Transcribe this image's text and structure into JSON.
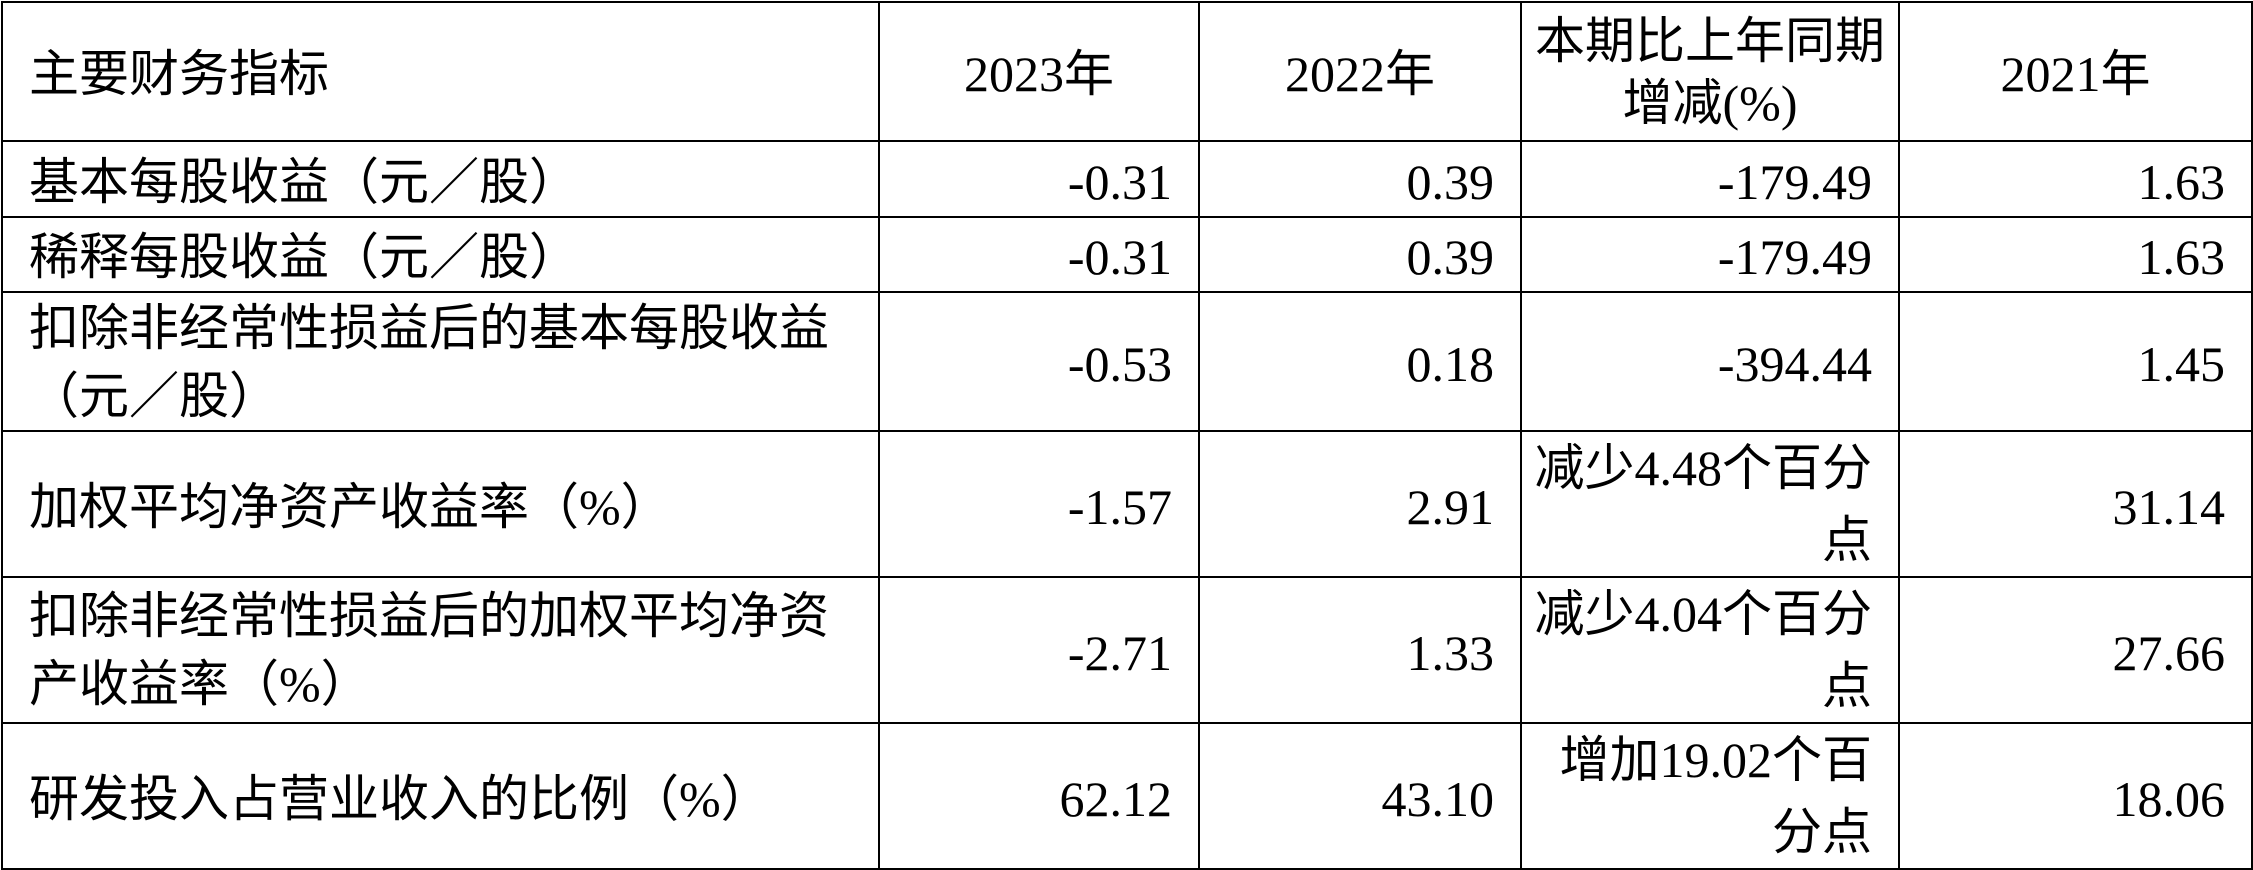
{
  "table": {
    "header": {
      "indicator": "主要财务指标",
      "y2023": "2023年",
      "y2022": "2022年",
      "change": "本期比上年同期增减(%)",
      "y2021": "2021年"
    },
    "rows": [
      {
        "indicator": "基本每股收益（元／股）",
        "y2023": "-0.31",
        "y2022": "0.39",
        "change": "-179.49",
        "y2021": "1.63"
      },
      {
        "indicator": "稀释每股收益（元／股）",
        "y2023": "-0.31",
        "y2022": "0.39",
        "change": "-179.49",
        "y2021": "1.63"
      },
      {
        "indicator": "扣除非经常性损益后的基本每股收益（元／股）",
        "y2023": "-0.53",
        "y2022": "0.18",
        "change": "-394.44",
        "y2021": "1.45"
      },
      {
        "indicator": "加权平均净资产收益率（%）",
        "y2023": "-1.57",
        "y2022": "2.91",
        "change": "减少4.48个百分点",
        "y2021": "31.14"
      },
      {
        "indicator": "扣除非经常性损益后的加权平均净资产收益率（%）",
        "y2023": "-2.71",
        "y2022": "1.33",
        "change": "减少4.04个百分点",
        "y2021": "27.66"
      },
      {
        "indicator": "研发投入占营业收入的比例（%）",
        "y2023": "62.12",
        "y2022": "43.10",
        "change": "增加19.02个百分点",
        "y2021": "18.06"
      }
    ]
  }
}
